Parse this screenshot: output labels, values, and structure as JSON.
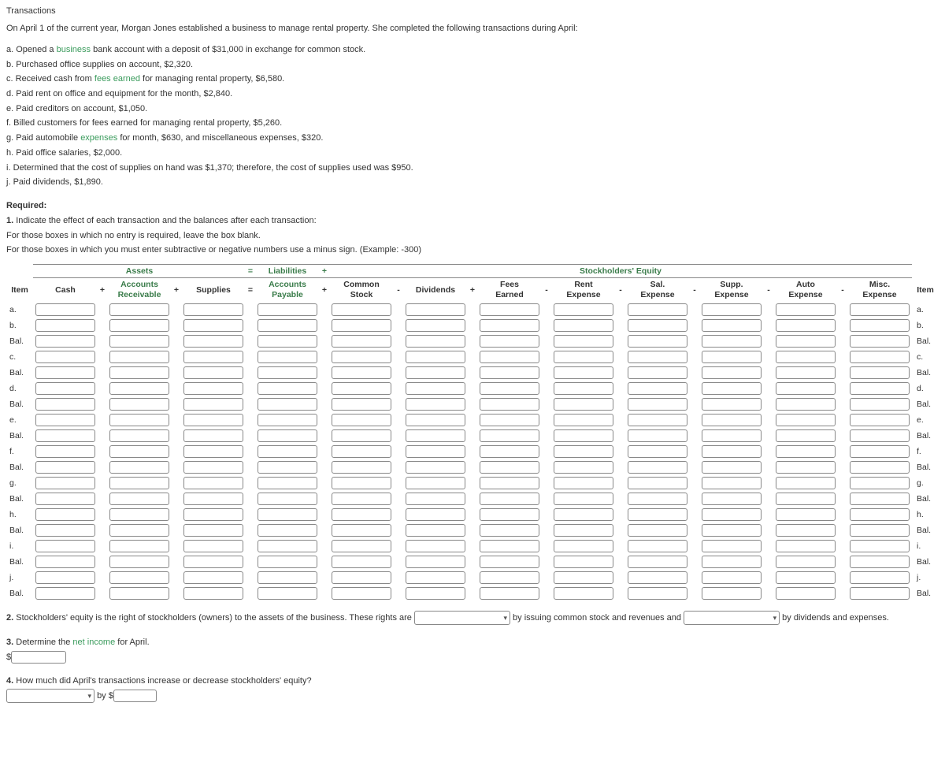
{
  "title": "Transactions",
  "intro": "On April 1 of the current year, Morgan Jones established a business to manage rental property. She completed the following transactions during April:",
  "transactions": [
    {
      "key": "a.",
      "pre": "Opened a ",
      "link": "business",
      "post": " bank account with a deposit of $31,000 in exchange for common stock."
    },
    {
      "key": "b.",
      "pre": "Purchased office supplies on account, $2,320.",
      "link": "",
      "post": ""
    },
    {
      "key": "c.",
      "pre": "Received cash from ",
      "link": "fees earned",
      "post": " for managing rental property, $6,580."
    },
    {
      "key": "d.",
      "pre": "Paid rent on office and equipment for the month, $2,840.",
      "link": "",
      "post": ""
    },
    {
      "key": "e.",
      "pre": "Paid creditors on account, $1,050.",
      "link": "",
      "post": ""
    },
    {
      "key": "f.",
      "pre": "Billed customers for fees earned for managing rental property, $5,260.",
      "link": "",
      "post": ""
    },
    {
      "key": "g.",
      "pre": "Paid automobile ",
      "link": "expenses",
      "post": " for month, $630, and miscellaneous expenses, $320."
    },
    {
      "key": "h.",
      "pre": "Paid office salaries, $2,000.",
      "link": "",
      "post": ""
    },
    {
      "key": "i.",
      "pre": "Determined that the cost of supplies on hand was $1,370; therefore, the cost of supplies used was $950.",
      "link": "",
      "post": ""
    },
    {
      "key": "j.",
      "pre": "Paid dividends, $1,890.",
      "link": "",
      "post": ""
    }
  ],
  "required_label": "Required:",
  "req1_num": "1.",
  "req1_text": "Indicate the effect of each transaction and the balances after each transaction:",
  "req1_note1": "For those boxes in which no entry is required, leave the box blank.",
  "req1_note2": "For those boxes in which you must enter subtractive or negative numbers use a minus sign. (Example: -300)",
  "sections": {
    "assets": "Assets",
    "eq": "=",
    "liab": "Liabilities",
    "plus": "+",
    "se": "Stockholders' Equity"
  },
  "columns": {
    "item_l": "Item",
    "cash": "Cash",
    "op_plus": "+",
    "ar1": "Accounts",
    "ar2": "Receivable",
    "supplies": "Supplies",
    "op_eq": "=",
    "ap1": "Accounts",
    "ap2": "Payable",
    "cs1": "Common",
    "cs2": "Stock",
    "op_minus": "-",
    "div": "Dividends",
    "fe1": "Fees",
    "fe2": "Earned",
    "re1": "Rent",
    "re2": "Expense",
    "se1": "Sal.",
    "se2": "Expense",
    "su1": "Supp.",
    "su2": "Expense",
    "au1": "Auto",
    "au2": "Expense",
    "mi1": "Misc.",
    "mi2": "Expense",
    "item_r": "Item"
  },
  "rows": [
    "a.",
    "b.",
    "Bal.",
    "c.",
    "Bal.",
    "d.",
    "Bal.",
    "e.",
    "Bal.",
    "f.",
    "Bal.",
    "g.",
    "Bal.",
    "h.",
    "Bal.",
    "i.",
    "Bal.",
    "j.",
    "Bal."
  ],
  "q2_num": "2.",
  "q2_a": "Stockholders' equity is the right of stockholders (owners) to the assets of the business. These rights are",
  "q2_b": "by issuing common stock and revenues and",
  "q2_c": "by dividends and expenses.",
  "q3_num": "3.",
  "q3_text_pre": "Determine the ",
  "q3_link": "net income",
  "q3_text_post": " for April.",
  "q3_dollar": "$",
  "q4_num": "4.",
  "q4_text": "How much did April's transactions increase or decrease stockholders' equity?",
  "q4_by": "by $"
}
